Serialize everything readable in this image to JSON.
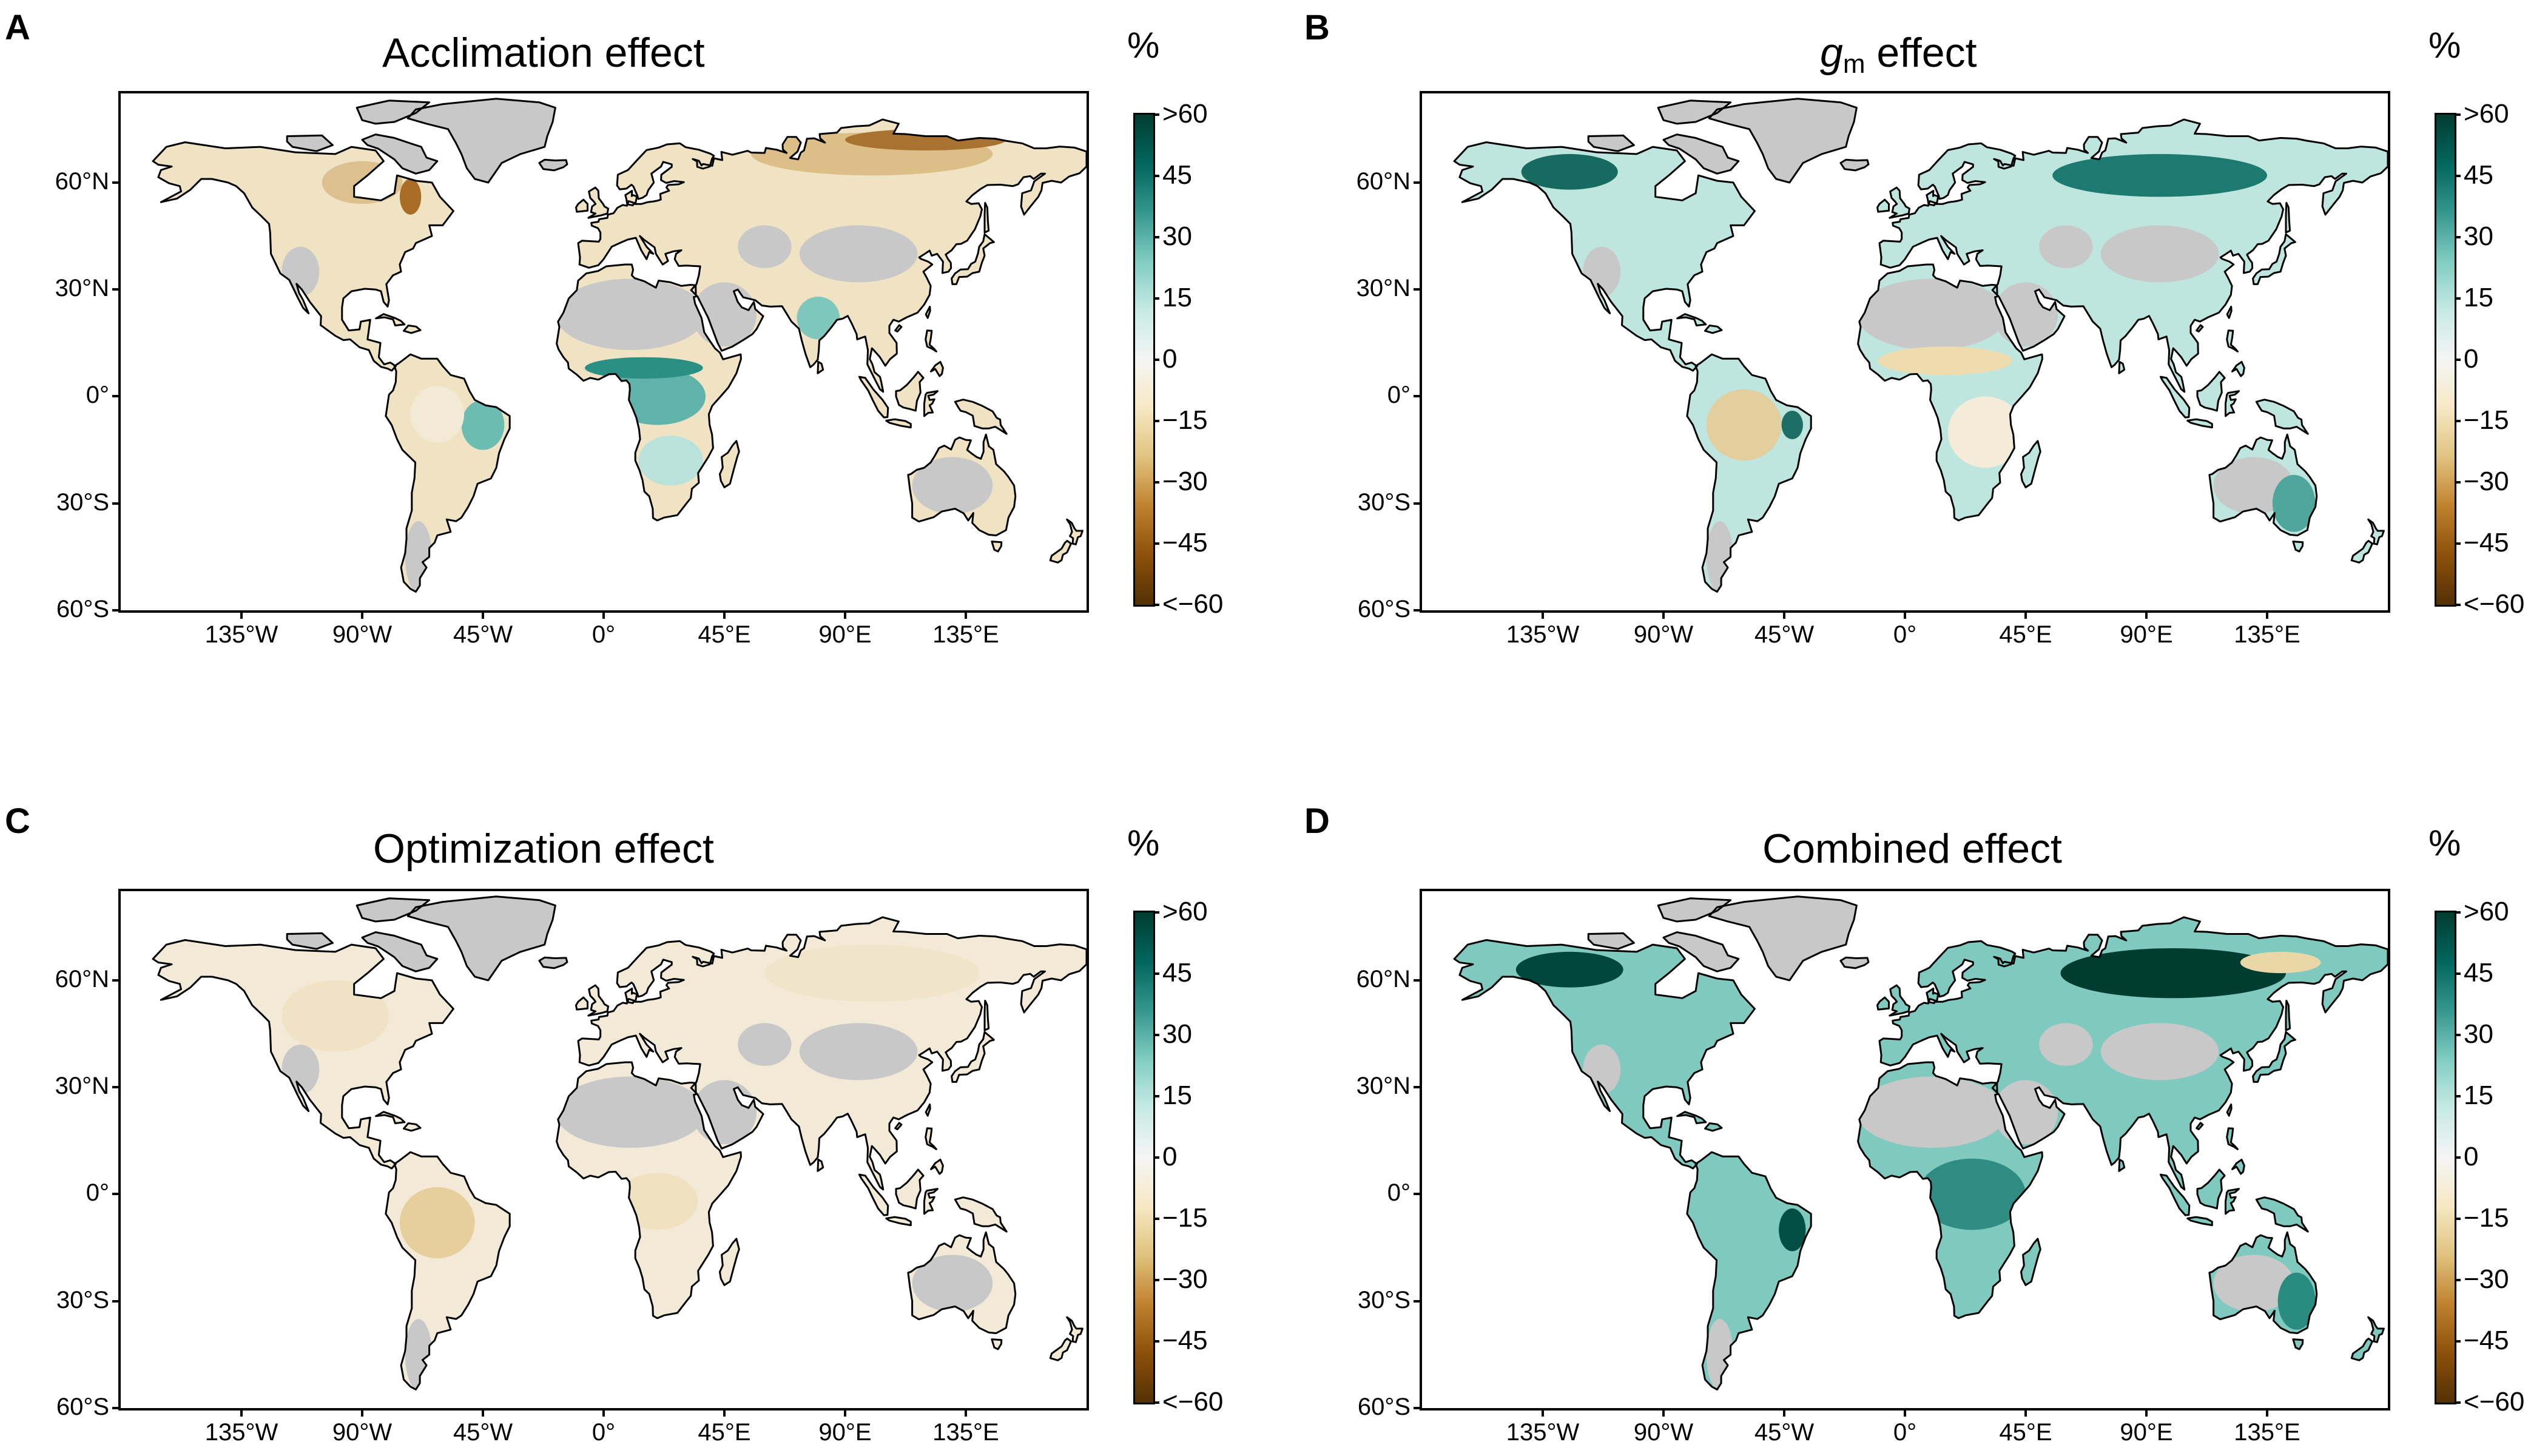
{
  "colorbar": {
    "unit": "%",
    "labels": [
      ">60",
      "45",
      "30",
      "15",
      "0",
      "−15",
      "−30",
      "−45",
      "<−60"
    ],
    "colors": [
      "#003c30",
      "#01665e",
      "#35978f",
      "#80cdc1",
      "#c7eae5",
      "#f5f5f5",
      "#f6e8c3",
      "#dfc27d",
      "#bf812d",
      "#8c510a",
      "#543005"
    ]
  },
  "axes": {
    "x_labels": [
      "135°W",
      "90°W",
      "45°W",
      "0°",
      "45°E",
      "90°E",
      "135°E"
    ],
    "y_labels": [
      "60°N",
      "30°N",
      "0°",
      "30°S",
      "60°S"
    ]
  },
  "panels": [
    {
      "letter": "A",
      "title": "Acclimation effect"
    },
    {
      "letter": "B",
      "title_italic": "g",
      "title_sub": "m",
      "title": " effect"
    },
    {
      "letter": "C",
      "title": "Optimization effect"
    },
    {
      "letter": "D",
      "title": "Combined effect"
    }
  ],
  "colors": {
    "no_data": "#c8c8c8",
    "coastline": "#000000",
    "ocean": "#ffffff"
  }
}
